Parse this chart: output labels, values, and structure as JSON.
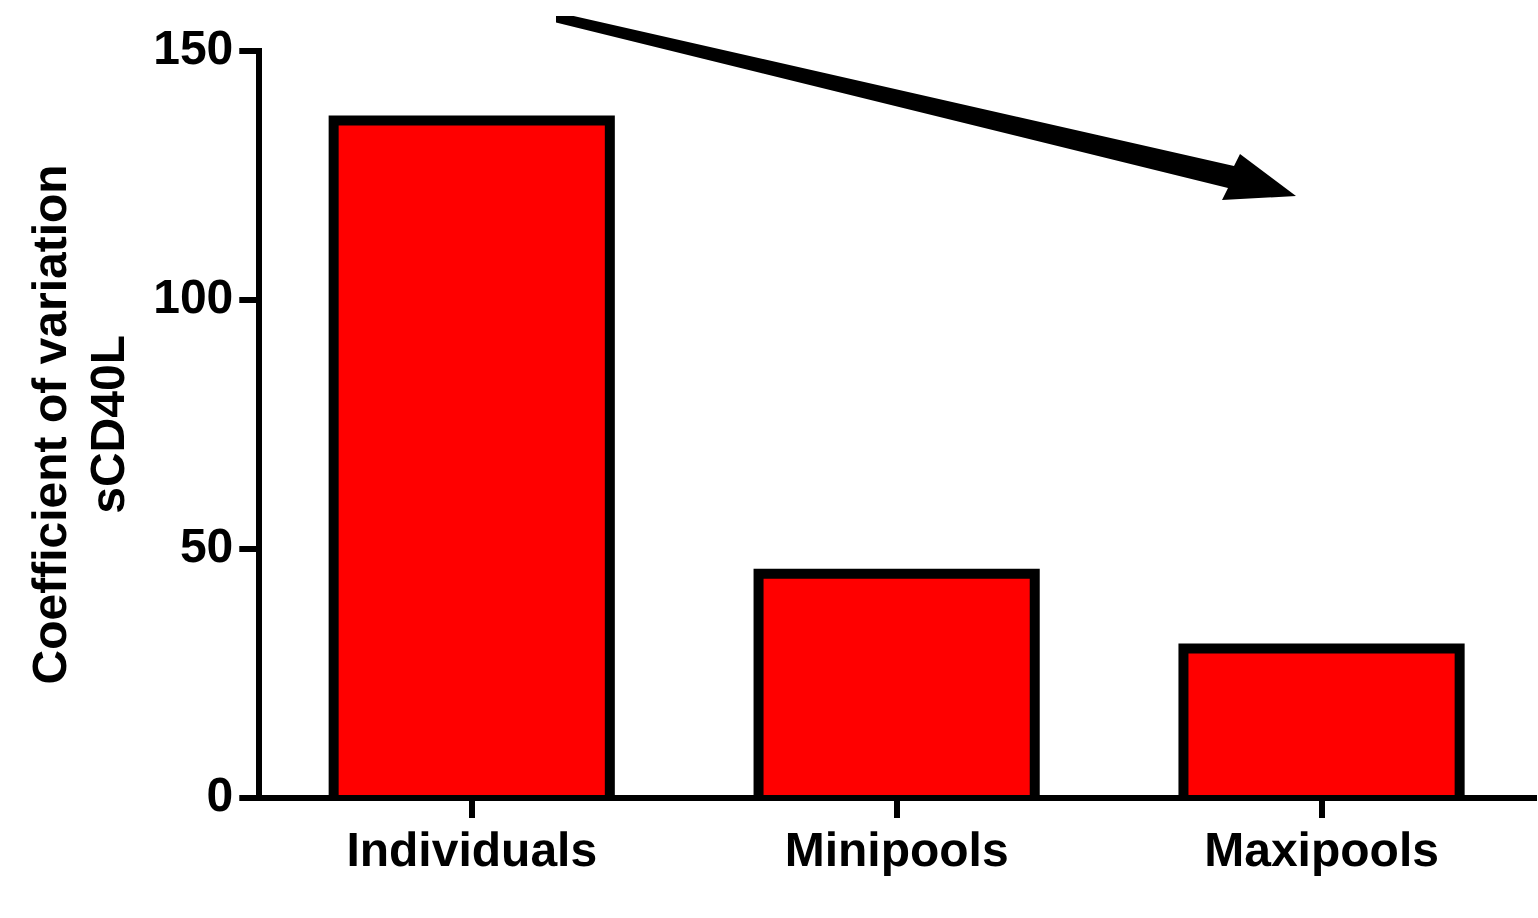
{
  "chart_data": {
    "type": "bar",
    "ylabel": "Coefficient of variation\nsCD40L",
    "categories": [
      "Individuals",
      "Minipools",
      "Maxipools"
    ],
    "values": [
      136,
      45,
      30
    ],
    "color": "#ff0000",
    "ylim": [
      0,
      150
    ],
    "yticks": [
      0,
      50,
      100,
      150
    ],
    "grid": false,
    "legend": false
  }
}
